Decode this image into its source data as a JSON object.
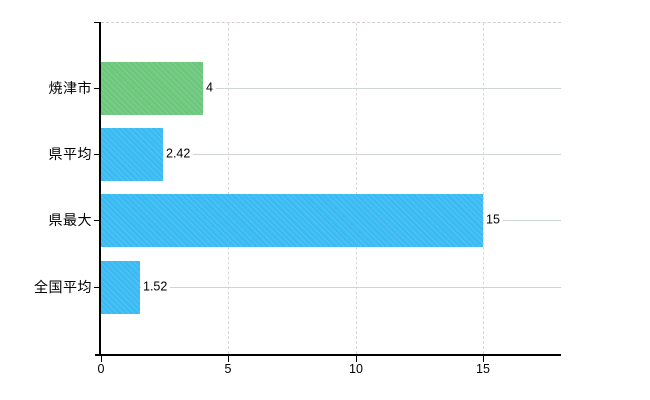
{
  "chart_data": {
    "type": "bar",
    "orientation": "horizontal",
    "title": "",
    "categories": [
      "焼津市",
      "県平均",
      "県最大",
      "全国平均"
    ],
    "values": [
      4,
      2.42,
      15,
      1.52
    ],
    "value_labels": [
      "4",
      "2.42",
      "15",
      "1.52"
    ],
    "bar_colors": [
      "#6fca7f",
      "#3dbdf5",
      "#3dbdf5",
      "#3dbdf5"
    ],
    "x_ticks": [
      0,
      5,
      10,
      15
    ],
    "x_tick_labels": [
      "0",
      "5",
      "10",
      "15"
    ],
    "xlim": [
      0,
      18
    ],
    "grid": {
      "horizontal": "solid at each category center",
      "vertical": "dashed at x ticks",
      "top_border": "dashed",
      "legend": "none"
    },
    "colors": {
      "bar_green": "#6fca7f",
      "bar_blue": "#3dbdf5",
      "grid_horizontal": "#cfd6cf",
      "grid_vertical": "#ded6da",
      "axis": "#000000",
      "background": "#ffffff",
      "text": "#000000"
    }
  }
}
